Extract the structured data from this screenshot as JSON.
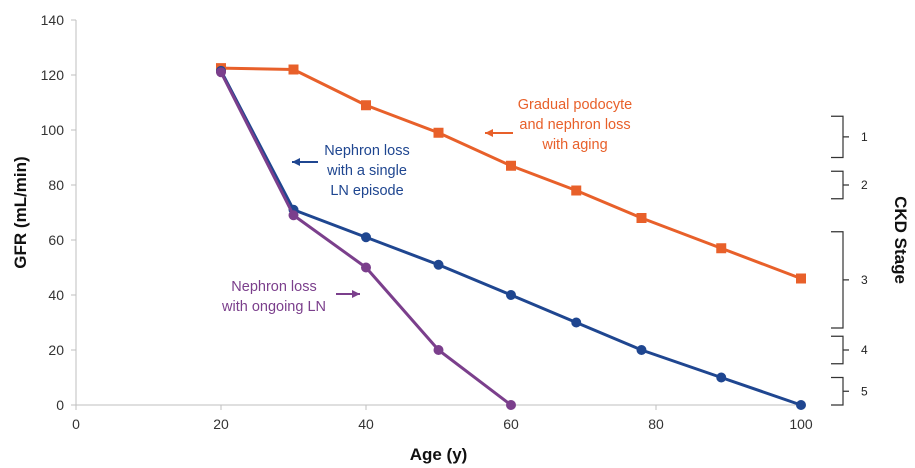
{
  "chart_data": {
    "type": "line",
    "title": "",
    "xlabel": "Age (y)",
    "ylabel": "GFR (mL/min)",
    "xlim": [
      0,
      100
    ],
    "ylim": [
      0,
      140
    ],
    "x_ticks": [
      0,
      20,
      40,
      60,
      80,
      100
    ],
    "y_ticks": [
      0,
      20,
      40,
      60,
      80,
      100,
      120,
      140
    ],
    "grid": false,
    "series": [
      {
        "name": "Gradual podocyte and nephron loss with aging",
        "color": "#E8602A",
        "marker": "square",
        "x": [
          20,
          30,
          40,
          50,
          60,
          69,
          78,
          89,
          100
        ],
        "y": [
          122.5,
          122,
          109,
          99,
          87,
          78,
          68,
          57,
          46
        ]
      },
      {
        "name": "Nephron loss with a single LN episode",
        "color": "#1F4690",
        "marker": "circle",
        "x": [
          20,
          30,
          40,
          50,
          60,
          69,
          78,
          89,
          100
        ],
        "y": [
          121.5,
          71,
          61,
          51,
          40,
          30,
          20,
          10,
          0
        ]
      },
      {
        "name": "Nephron loss with ongoing LN",
        "color": "#7B3F8C",
        "marker": "circle",
        "x": [
          20,
          30,
          40,
          50,
          60
        ],
        "y": [
          121,
          69,
          50,
          20,
          0
        ]
      }
    ],
    "annotations": [
      {
        "name": "aging",
        "lines": [
          "Gradual podocyte",
          "and nephron loss",
          "with aging"
        ],
        "color": "#E8602A"
      },
      {
        "name": "single-episode",
        "lines": [
          "Nephron loss",
          "with a single",
          "LN episode"
        ],
        "color": "#1F4690"
      },
      {
        "name": "ongoing",
        "lines": [
          "Nephron loss",
          "with ongoing LN"
        ],
        "color": "#7B3F8C"
      }
    ],
    "secondary_axis": {
      "title": "CKD Stage",
      "stages": [
        {
          "label": "1",
          "from": 90,
          "to": 105
        },
        {
          "label": "2",
          "from": 75,
          "to": 85
        },
        {
          "label": "3",
          "from": 28,
          "to": 63
        },
        {
          "label": "4",
          "from": 15,
          "to": 25
        },
        {
          "label": "5",
          "from": 0,
          "to": 10
        }
      ]
    }
  }
}
